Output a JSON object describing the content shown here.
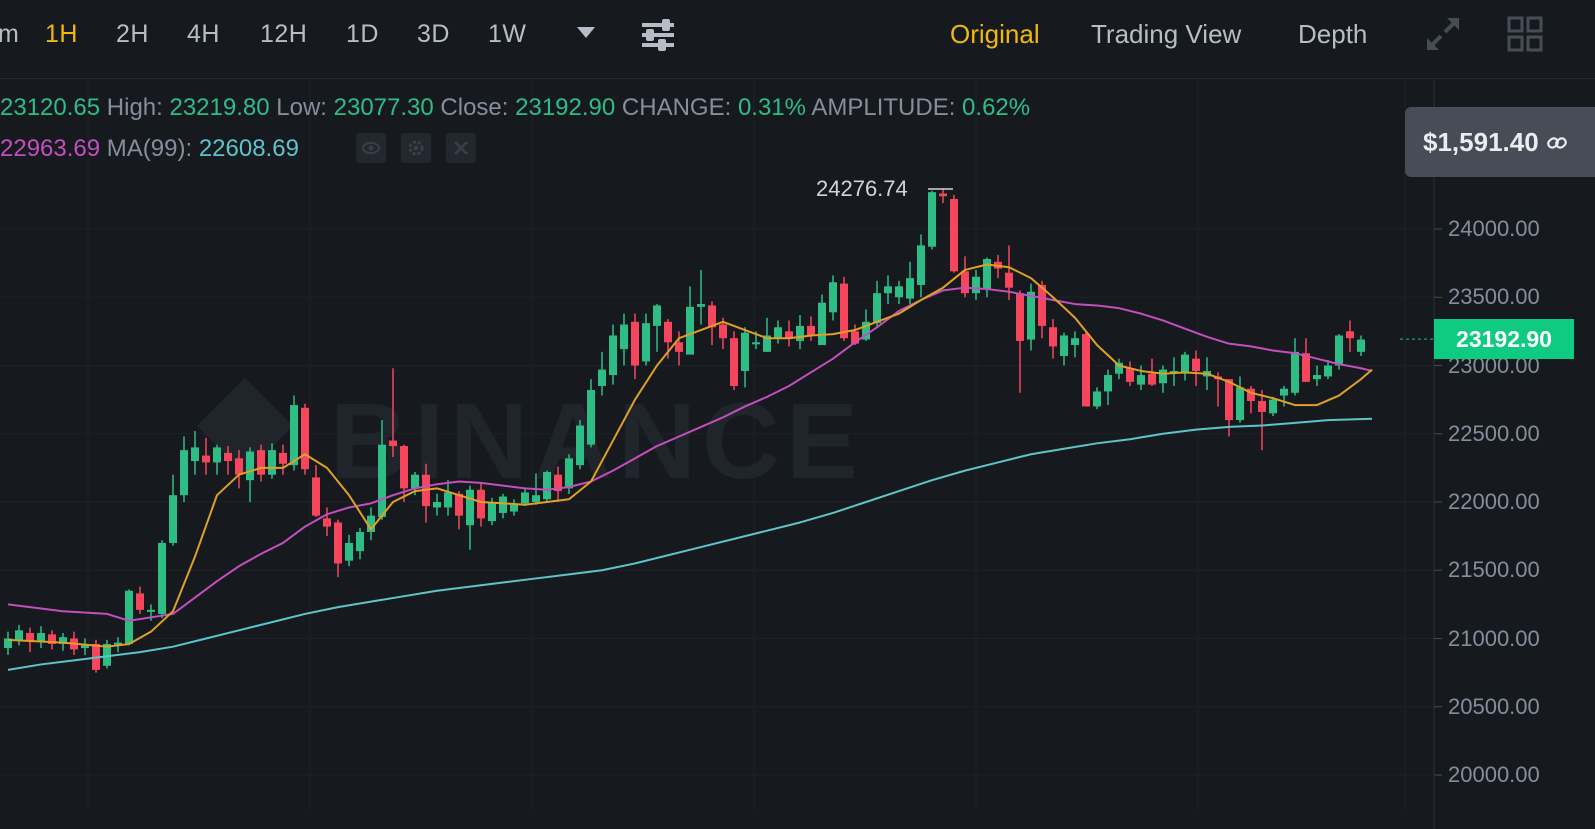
{
  "toolbar": {
    "partial_interval": "m",
    "intervals": [
      "1H",
      "2H",
      "4H",
      "12H",
      "1D",
      "3D",
      "1W"
    ],
    "active_interval": "1H",
    "views": [
      "Original",
      "Trading View",
      "Depth"
    ],
    "active_view": "Original"
  },
  "ohlc": {
    "open": "23120.65",
    "high_label": "High:",
    "high": "23219.80",
    "low_label": "Low:",
    "low": "23077.30",
    "close_label": "Close:",
    "close": "23192.90",
    "change_label": "CHANGE:",
    "change": "0.31%",
    "amplitude_label": "AMPLITUDE:",
    "amplitude": "0.62%"
  },
  "ma": {
    "ma25_value": "22963.69",
    "ma99_label": "MA(99):",
    "ma99_value": "22608.69"
  },
  "price_tag": "$1,591.40",
  "watermark": "BINANCE",
  "colors": {
    "up": "#2ebd85",
    "down": "#f6465d",
    "accent": "#f0b90b",
    "ma7": "#e0a028",
    "ma25": "#c34fbf",
    "ma99": "#5ec4c9"
  },
  "chart_data": {
    "type": "candlestick",
    "ylim": [
      19850,
      24550
    ],
    "y_ticks": [
      "24000.00",
      "23500.00",
      "23000.00",
      "22500.00",
      "22000.00",
      "21500.00",
      "21000.00",
      "20500.00",
      "20000.00"
    ],
    "y_tick_values": [
      24000,
      23500,
      23000,
      22500,
      22000,
      21500,
      21000,
      20500,
      20000
    ],
    "last_price_label": "23192.90",
    "last_price": 23192.9,
    "high_marker": "24276.74",
    "candles": [
      [
        20930,
        21000,
        20880,
        21050
      ],
      [
        20990,
        21060,
        20950,
        21100
      ],
      [
        21040,
        20980,
        20900,
        21080
      ],
      [
        20980,
        21040,
        20930,
        21090
      ],
      [
        21030,
        20960,
        20920,
        21060
      ],
      [
        20960,
        21010,
        20910,
        21040
      ],
      [
        21000,
        20920,
        20880,
        21050
      ],
      [
        20930,
        20960,
        20880,
        21000
      ],
      [
        20960,
        20770,
        20750,
        20990
      ],
      [
        20800,
        20960,
        20780,
        20990
      ],
      [
        20960,
        20970,
        20900,
        21010
      ],
      [
        20960,
        21350,
        20950,
        21360
      ],
      [
        21330,
        21210,
        21180,
        21380
      ],
      [
        21210,
        21210,
        21130,
        21250
      ],
      [
        21180,
        21700,
        21150,
        21720
      ],
      [
        21700,
        22050,
        21680,
        22200
      ],
      [
        22050,
        22380,
        22000,
        22480
      ],
      [
        22300,
        22400,
        22200,
        22520
      ],
      [
        22340,
        22290,
        22200,
        22470
      ],
      [
        22290,
        22400,
        22200,
        22420
      ],
      [
        22360,
        22300,
        22200,
        22410
      ],
      [
        22320,
        22200,
        22100,
        22380
      ],
      [
        22160,
        22370,
        22000,
        22400
      ],
      [
        22380,
        22200,
        22150,
        22420
      ],
      [
        22200,
        22380,
        22170,
        22430
      ],
      [
        22360,
        22280,
        22200,
        22420
      ],
      [
        22270,
        22710,
        22230,
        22780
      ],
      [
        22690,
        22240,
        22200,
        22720
      ],
      [
        22180,
        21900,
        21890,
        22270
      ],
      [
        21880,
        21820,
        21750,
        21960
      ],
      [
        21850,
        21550,
        21450,
        21870
      ],
      [
        21570,
        21700,
        21530,
        21760
      ],
      [
        21640,
        21780,
        21580,
        21810
      ],
      [
        21780,
        21900,
        21720,
        21960
      ],
      [
        21890,
        22420,
        21870,
        22600
      ],
      [
        22450,
        22410,
        22330,
        22980
      ],
      [
        22410,
        22100,
        22000,
        22420
      ],
      [
        22100,
        22200,
        22050,
        22220
      ],
      [
        22200,
        21970,
        21850,
        22280
      ],
      [
        21960,
        22000,
        21900,
        22060
      ],
      [
        21960,
        22070,
        21900,
        22160
      ],
      [
        22060,
        21900,
        21800,
        22080
      ],
      [
        21830,
        22090,
        21650,
        22120
      ],
      [
        22090,
        21880,
        21820,
        22140
      ],
      [
        21860,
        22000,
        21830,
        22030
      ],
      [
        21920,
        22040,
        21880,
        22060
      ],
      [
        21930,
        21980,
        21900,
        22020
      ],
      [
        21990,
        22070,
        21970,
        22100
      ],
      [
        22000,
        22050,
        21980,
        22210
      ],
      [
        22020,
        22220,
        22000,
        22230
      ],
      [
        22200,
        22080,
        22000,
        22260
      ],
      [
        22100,
        22320,
        22060,
        22350
      ],
      [
        22270,
        22560,
        22240,
        22600
      ],
      [
        22420,
        22820,
        22400,
        22900
      ],
      [
        22850,
        22970,
        22780,
        23100
      ],
      [
        22930,
        23220,
        22860,
        23300
      ],
      [
        23120,
        23300,
        23000,
        23380
      ],
      [
        23320,
        23000,
        22900,
        23380
      ],
      [
        23030,
        23310,
        23000,
        23380
      ],
      [
        23290,
        23440,
        23100,
        23450
      ],
      [
        23320,
        23170,
        23050,
        23340
      ],
      [
        23170,
        23100,
        23000,
        23250
      ],
      [
        23080,
        23430,
        23080,
        23580
      ],
      [
        23430,
        23450,
        23300,
        23700
      ],
      [
        23440,
        23280,
        23150,
        23470
      ],
      [
        23300,
        23200,
        23120,
        23350
      ],
      [
        23200,
        22850,
        22820,
        23250
      ],
      [
        22960,
        23240,
        22840,
        23280
      ],
      [
        23170,
        23170,
        23120,
        23250
      ],
      [
        23100,
        23220,
        23100,
        23350
      ],
      [
        23200,
        23280,
        23160,
        23330
      ],
      [
        23250,
        23200,
        23140,
        23330
      ],
      [
        23180,
        23290,
        23120,
        23370
      ],
      [
        23290,
        23220,
        23180,
        23360
      ],
      [
        23150,
        23460,
        23150,
        23520
      ],
      [
        23390,
        23610,
        23330,
        23660
      ],
      [
        23600,
        23200,
        23180,
        23650
      ],
      [
        23250,
        23160,
        23150,
        23300
      ],
      [
        23190,
        23320,
        23180,
        23410
      ],
      [
        23310,
        23530,
        23280,
        23620
      ],
      [
        23530,
        23580,
        23450,
        23660
      ],
      [
        23500,
        23580,
        23450,
        23620
      ],
      [
        23490,
        23640,
        23450,
        23760
      ],
      [
        23590,
        23880,
        23500,
        23960
      ],
      [
        23870,
        24270,
        23850,
        24280
      ],
      [
        24260,
        24240,
        24190,
        24290
      ],
      [
        24220,
        23690,
        23680,
        24250
      ],
      [
        23690,
        23530,
        23500,
        23800
      ],
      [
        23530,
        23650,
        23480,
        23700
      ],
      [
        23560,
        23780,
        23500,
        23790
      ],
      [
        23760,
        23710,
        23640,
        23810
      ],
      [
        23680,
        23570,
        23480,
        23880
      ],
      [
        23530,
        23180,
        22800,
        23550
      ],
      [
        23190,
        23540,
        23110,
        23600
      ],
      [
        23590,
        23290,
        23200,
        23620
      ],
      [
        23280,
        23140,
        23050,
        23340
      ],
      [
        23070,
        23220,
        23000,
        23240
      ],
      [
        23150,
        23200,
        23060,
        23250
      ],
      [
        23230,
        22700,
        22700,
        23250
      ],
      [
        22700,
        22810,
        22680,
        22840
      ],
      [
        22810,
        22930,
        22710,
        22970
      ],
      [
        22940,
        23020,
        22900,
        23050
      ],
      [
        22980,
        22880,
        22850,
        23030
      ],
      [
        22860,
        22930,
        22820,
        23000
      ],
      [
        22940,
        22860,
        22850,
        23050
      ],
      [
        22870,
        22970,
        22800,
        23000
      ],
      [
        22950,
        22960,
        22850,
        23060
      ],
      [
        22940,
        23080,
        22890,
        23100
      ],
      [
        23050,
        22960,
        22850,
        23110
      ],
      [
        22920,
        22960,
        22820,
        23060
      ],
      [
        22920,
        22900,
        22700,
        22950
      ],
      [
        22900,
        22600,
        22480,
        22900
      ],
      [
        22600,
        22840,
        22580,
        22920
      ],
      [
        22830,
        22740,
        22650,
        22850
      ],
      [
        22740,
        22660,
        22380,
        22820
      ],
      [
        22650,
        22750,
        22630,
        22770
      ],
      [
        22780,
        22830,
        22700,
        22850
      ],
      [
        22800,
        23100,
        22780,
        23200
      ],
      [
        23090,
        22880,
        22880,
        23200
      ],
      [
        22900,
        22930,
        22850,
        23000
      ],
      [
        22920,
        23000,
        22900,
        23040
      ],
      [
        23000,
        23220,
        22970,
        23230
      ],
      [
        23250,
        23200,
        23100,
        23330
      ],
      [
        23100,
        23190,
        23070,
        23220
      ]
    ],
    "ma7": [
      [
        0,
        20990
      ],
      [
        5,
        20970
      ],
      [
        9,
        20940
      ],
      [
        11,
        20960
      ],
      [
        13,
        21050
      ],
      [
        15,
        21200
      ],
      [
        17,
        21600
      ],
      [
        19,
        22050
      ],
      [
        21,
        22200
      ],
      [
        23,
        22250
      ],
      [
        25,
        22250
      ],
      [
        27,
        22350
      ],
      [
        29,
        22250
      ],
      [
        31,
        22050
      ],
      [
        33,
        21800
      ],
      [
        35,
        22000
      ],
      [
        37,
        22080
      ],
      [
        39,
        22100
      ],
      [
        41,
        22050
      ],
      [
        43,
        22000
      ],
      [
        45,
        21990
      ],
      [
        47,
        21980
      ],
      [
        49,
        22000
      ],
      [
        51,
        22020
      ],
      [
        53,
        22150
      ],
      [
        55,
        22450
      ],
      [
        57,
        22750
      ],
      [
        59,
        23000
      ],
      [
        61,
        23200
      ],
      [
        63,
        23260
      ],
      [
        65,
        23320
      ],
      [
        67,
        23260
      ],
      [
        69,
        23200
      ],
      [
        71,
        23200
      ],
      [
        73,
        23220
      ],
      [
        75,
        23230
      ],
      [
        77,
        23260
      ],
      [
        79,
        23320
      ],
      [
        81,
        23380
      ],
      [
        83,
        23480
      ],
      [
        85,
        23570
      ],
      [
        87,
        23700
      ],
      [
        89,
        23740
      ],
      [
        91,
        23720
      ],
      [
        93,
        23640
      ],
      [
        95,
        23500
      ],
      [
        97,
        23350
      ],
      [
        99,
        23150
      ],
      [
        101,
        23000
      ],
      [
        103,
        22960
      ],
      [
        105,
        22940
      ],
      [
        107,
        22950
      ],
      [
        109,
        22940
      ],
      [
        111,
        22880
      ],
      [
        113,
        22800
      ],
      [
        115,
        22760
      ],
      [
        117,
        22710
      ],
      [
        119,
        22710
      ],
      [
        121,
        22780
      ],
      [
        123,
        22900
      ],
      [
        124,
        22970
      ]
    ],
    "ma25": [
      [
        0,
        21250
      ],
      [
        5,
        21200
      ],
      [
        9,
        21180
      ],
      [
        11,
        21130
      ],
      [
        15,
        21180
      ],
      [
        17,
        21300
      ],
      [
        19,
        21420
      ],
      [
        21,
        21530
      ],
      [
        23,
        21620
      ],
      [
        25,
        21700
      ],
      [
        27,
        21820
      ],
      [
        29,
        21910
      ],
      [
        31,
        21960
      ],
      [
        33,
        21990
      ],
      [
        35,
        22050
      ],
      [
        37,
        22100
      ],
      [
        39,
        22130
      ],
      [
        41,
        22150
      ],
      [
        43,
        22140
      ],
      [
        45,
        22120
      ],
      [
        47,
        22100
      ],
      [
        49,
        22090
      ],
      [
        51,
        22110
      ],
      [
        53,
        22150
      ],
      [
        55,
        22230
      ],
      [
        57,
        22320
      ],
      [
        59,
        22410
      ],
      [
        61,
        22480
      ],
      [
        63,
        22550
      ],
      [
        65,
        22620
      ],
      [
        67,
        22700
      ],
      [
        69,
        22770
      ],
      [
        71,
        22850
      ],
      [
        73,
        22950
      ],
      [
        75,
        23050
      ],
      [
        77,
        23170
      ],
      [
        79,
        23280
      ],
      [
        81,
        23400
      ],
      [
        83,
        23480
      ],
      [
        85,
        23550
      ],
      [
        87,
        23570
      ],
      [
        89,
        23560
      ],
      [
        91,
        23540
      ],
      [
        93,
        23510
      ],
      [
        95,
        23480
      ],
      [
        97,
        23450
      ],
      [
        99,
        23440
      ],
      [
        101,
        23420
      ],
      [
        103,
        23380
      ],
      [
        105,
        23330
      ],
      [
        107,
        23270
      ],
      [
        109,
        23210
      ],
      [
        111,
        23160
      ],
      [
        113,
        23140
      ],
      [
        115,
        23110
      ],
      [
        117,
        23090
      ],
      [
        119,
        23050
      ],
      [
        121,
        23010
      ],
      [
        123,
        22980
      ],
      [
        124,
        22960
      ]
    ],
    "ma99": [
      [
        0,
        20770
      ],
      [
        3,
        20810
      ],
      [
        6,
        20840
      ],
      [
        9,
        20870
      ],
      [
        12,
        20900
      ],
      [
        15,
        20940
      ],
      [
        18,
        21000
      ],
      [
        21,
        21060
      ],
      [
        24,
        21120
      ],
      [
        27,
        21180
      ],
      [
        30,
        21230
      ],
      [
        33,
        21270
      ],
      [
        36,
        21310
      ],
      [
        39,
        21350
      ],
      [
        42,
        21380
      ],
      [
        45,
        21410
      ],
      [
        48,
        21440
      ],
      [
        51,
        21470
      ],
      [
        54,
        21500
      ],
      [
        57,
        21550
      ],
      [
        60,
        21610
      ],
      [
        63,
        21670
      ],
      [
        66,
        21730
      ],
      [
        69,
        21790
      ],
      [
        72,
        21850
      ],
      [
        75,
        21920
      ],
      [
        78,
        22000
      ],
      [
        81,
        22080
      ],
      [
        84,
        22160
      ],
      [
        87,
        22230
      ],
      [
        90,
        22290
      ],
      [
        93,
        22350
      ],
      [
        96,
        22390
      ],
      [
        99,
        22430
      ],
      [
        102,
        22460
      ],
      [
        105,
        22500
      ],
      [
        108,
        22530
      ],
      [
        111,
        22550
      ],
      [
        114,
        22560
      ],
      [
        117,
        22580
      ],
      [
        120,
        22600
      ],
      [
        124,
        22610
      ]
    ]
  }
}
